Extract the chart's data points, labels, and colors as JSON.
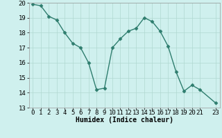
{
  "x": [
    0,
    1,
    2,
    3,
    4,
    5,
    6,
    7,
    8,
    9,
    10,
    11,
    12,
    13,
    14,
    15,
    16,
    17,
    18,
    19,
    20,
    21,
    23
  ],
  "y": [
    19.9,
    19.8,
    19.1,
    18.85,
    18.0,
    17.3,
    17.0,
    16.0,
    14.2,
    14.3,
    17.0,
    17.6,
    18.1,
    18.3,
    19.0,
    18.75,
    18.1,
    17.1,
    15.4,
    14.1,
    14.5,
    14.2,
    13.3
  ],
  "line_color": "#2e7d6e",
  "marker": "D",
  "markersize": 2.5,
  "linewidth": 1.0,
  "background_color": "#cff0ee",
  "grid_color": "#b0d8d0",
  "xlabel": "Humidex (Indice chaleur)",
  "xlim": [
    -0.5,
    23.5
  ],
  "ylim": [
    13,
    20
  ],
  "yticks": [
    13,
    14,
    15,
    16,
    17,
    18,
    19,
    20
  ],
  "xticks": [
    0,
    1,
    2,
    3,
    4,
    5,
    6,
    7,
    8,
    9,
    10,
    11,
    12,
    13,
    14,
    15,
    16,
    17,
    18,
    19,
    20,
    21,
    23
  ],
  "xlabel_fontsize": 7,
  "tick_fontsize": 6.5
}
